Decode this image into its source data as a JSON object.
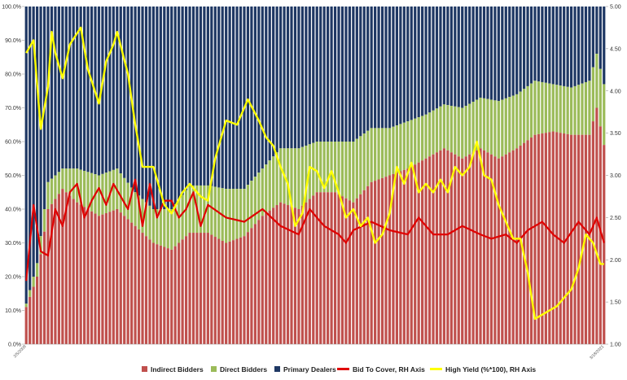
{
  "chart_data": {
    "type": "bar",
    "stacked": true,
    "grid": false,
    "legend_position": "bottom",
    "left_axis": {
      "ticks": [
        "0.0%",
        "10.0%",
        "20.0%",
        "30.0%",
        "40.0%",
        "50.0%",
        "60.0%",
        "70.0%",
        "80.0%",
        "90.0%",
        "100.0%"
      ],
      "range": [
        0,
        100
      ]
    },
    "right_axis": {
      "ticks": [
        "1.00",
        "1.50",
        "2.00",
        "2.50",
        "3.00",
        "3.50",
        "4.00",
        "4.50",
        "5.00"
      ],
      "range": [
        1,
        5
      ]
    },
    "x_first": "2/5/2008",
    "x_last": "3/18/2021",
    "count": 160,
    "colors": {
      "indirect": "#c0504d",
      "direct": "#9bbb59",
      "primary": "#1f3864",
      "btc": "#e00000",
      "yield": "#ffff00"
    },
    "series": [
      {
        "name": "Indirect Bidders",
        "axis": "left",
        "type": "bar",
        "anchors": [
          [
            0,
            11
          ],
          [
            3,
            20
          ],
          [
            6,
            40
          ],
          [
            10,
            46
          ],
          [
            14,
            42
          ],
          [
            20,
            38
          ],
          [
            25,
            40
          ],
          [
            30,
            35
          ],
          [
            35,
            30
          ],
          [
            40,
            28
          ],
          [
            45,
            33
          ],
          [
            50,
            33
          ],
          [
            55,
            30
          ],
          [
            60,
            32
          ],
          [
            65,
            38
          ],
          [
            70,
            42
          ],
          [
            75,
            40
          ],
          [
            80,
            45
          ],
          [
            85,
            45
          ],
          [
            90,
            42
          ],
          [
            95,
            48
          ],
          [
            100,
            50
          ],
          [
            105,
            52
          ],
          [
            110,
            55
          ],
          [
            115,
            58
          ],
          [
            120,
            55
          ],
          [
            125,
            58
          ],
          [
            130,
            55
          ],
          [
            135,
            58
          ],
          [
            140,
            62
          ],
          [
            145,
            63
          ],
          [
            150,
            62
          ],
          [
            155,
            62
          ],
          [
            157,
            70
          ],
          [
            159,
            59
          ]
        ]
      },
      {
        "name": "Direct Bidders",
        "axis": "left",
        "type": "bar",
        "anchors": [
          [
            0,
            1
          ],
          [
            3,
            4
          ],
          [
            6,
            8
          ],
          [
            10,
            6
          ],
          [
            14,
            10
          ],
          [
            20,
            12
          ],
          [
            25,
            12
          ],
          [
            30,
            10
          ],
          [
            35,
            10
          ],
          [
            40,
            12
          ],
          [
            45,
            14
          ],
          [
            50,
            14
          ],
          [
            55,
            16
          ],
          [
            60,
            14
          ],
          [
            65,
            14
          ],
          [
            70,
            16
          ],
          [
            75,
            18
          ],
          [
            80,
            15
          ],
          [
            85,
            15
          ],
          [
            90,
            18
          ],
          [
            95,
            16
          ],
          [
            100,
            14
          ],
          [
            105,
            14
          ],
          [
            110,
            13
          ],
          [
            115,
            13
          ],
          [
            120,
            15
          ],
          [
            125,
            15
          ],
          [
            130,
            17
          ],
          [
            135,
            16
          ],
          [
            140,
            16
          ],
          [
            145,
            14
          ],
          [
            150,
            14
          ],
          [
            155,
            16
          ],
          [
            157,
            16
          ],
          [
            159,
            18
          ]
        ]
      },
      {
        "name": "Primary Dealers",
        "axis": "left",
        "type": "bar",
        "values": "remainder"
      },
      {
        "name": "Bid To Cover, RH Axis",
        "axis": "right",
        "type": "line",
        "anchors": [
          [
            0,
            1.75
          ],
          [
            2,
            2.65
          ],
          [
            4,
            2.1
          ],
          [
            6,
            2.05
          ],
          [
            8,
            2.6
          ],
          [
            10,
            2.4
          ],
          [
            12,
            2.8
          ],
          [
            14,
            2.9
          ],
          [
            16,
            2.5
          ],
          [
            18,
            2.7
          ],
          [
            20,
            2.85
          ],
          [
            22,
            2.65
          ],
          [
            24,
            2.9
          ],
          [
            26,
            2.75
          ],
          [
            28,
            2.6
          ],
          [
            30,
            2.95
          ],
          [
            32,
            2.4
          ],
          [
            34,
            2.9
          ],
          [
            36,
            2.5
          ],
          [
            38,
            2.7
          ],
          [
            40,
            2.7
          ],
          [
            42,
            2.5
          ],
          [
            44,
            2.6
          ],
          [
            46,
            2.8
          ],
          [
            48,
            2.4
          ],
          [
            50,
            2.65
          ],
          [
            55,
            2.5
          ],
          [
            60,
            2.45
          ],
          [
            65,
            2.6
          ],
          [
            70,
            2.4
          ],
          [
            75,
            2.3
          ],
          [
            78,
            2.6
          ],
          [
            82,
            2.4
          ],
          [
            86,
            2.3
          ],
          [
            88,
            2.2
          ],
          [
            90,
            2.35
          ],
          [
            95,
            2.45
          ],
          [
            100,
            2.35
          ],
          [
            105,
            2.3
          ],
          [
            108,
            2.5
          ],
          [
            112,
            2.3
          ],
          [
            116,
            2.3
          ],
          [
            120,
            2.4
          ],
          [
            125,
            2.3
          ],
          [
            128,
            2.25
          ],
          [
            132,
            2.3
          ],
          [
            135,
            2.2
          ],
          [
            138,
            2.35
          ],
          [
            142,
            2.45
          ],
          [
            145,
            2.3
          ],
          [
            148,
            2.2
          ],
          [
            152,
            2.45
          ],
          [
            155,
            2.3
          ],
          [
            157,
            2.5
          ],
          [
            159,
            2.2
          ]
        ]
      },
      {
        "name": "High Yield (%*100), RH Axis",
        "axis": "right",
        "type": "line",
        "anchors": [
          [
            0,
            4.45
          ],
          [
            2,
            4.6
          ],
          [
            4,
            3.55
          ],
          [
            6,
            4.05
          ],
          [
            7,
            4.7
          ],
          [
            8,
            4.45
          ],
          [
            10,
            4.15
          ],
          [
            12,
            4.55
          ],
          [
            15,
            4.75
          ],
          [
            17,
            4.25
          ],
          [
            20,
            3.85
          ],
          [
            22,
            4.35
          ],
          [
            24,
            4.55
          ],
          [
            25,
            4.7
          ],
          [
            28,
            4.2
          ],
          [
            30,
            3.6
          ],
          [
            32,
            3.1
          ],
          [
            35,
            3.1
          ],
          [
            38,
            2.65
          ],
          [
            40,
            2.55
          ],
          [
            43,
            2.8
          ],
          [
            45,
            2.9
          ],
          [
            48,
            2.75
          ],
          [
            50,
            2.7
          ],
          [
            52,
            3.2
          ],
          [
            55,
            3.65
          ],
          [
            58,
            3.6
          ],
          [
            61,
            3.9
          ],
          [
            64,
            3.65
          ],
          [
            66,
            3.45
          ],
          [
            68,
            3.35
          ],
          [
            70,
            3.1
          ],
          [
            72,
            2.9
          ],
          [
            74,
            2.4
          ],
          [
            76,
            2.55
          ],
          [
            78,
            3.1
          ],
          [
            80,
            3.05
          ],
          [
            82,
            2.85
          ],
          [
            84,
            3.05
          ],
          [
            86,
            2.8
          ],
          [
            88,
            2.5
          ],
          [
            90,
            2.6
          ],
          [
            92,
            2.4
          ],
          [
            94,
            2.5
          ],
          [
            96,
            2.2
          ],
          [
            98,
            2.3
          ],
          [
            100,
            2.55
          ],
          [
            102,
            3.1
          ],
          [
            104,
            2.9
          ],
          [
            106,
            3.15
          ],
          [
            108,
            2.8
          ],
          [
            110,
            2.9
          ],
          [
            112,
            2.8
          ],
          [
            114,
            2.95
          ],
          [
            116,
            2.8
          ],
          [
            118,
            3.1
          ],
          [
            120,
            3.0
          ],
          [
            122,
            3.1
          ],
          [
            124,
            3.4
          ],
          [
            126,
            3.0
          ],
          [
            128,
            2.95
          ],
          [
            130,
            2.65
          ],
          [
            132,
            2.45
          ],
          [
            134,
            2.25
          ],
          [
            136,
            2.25
          ],
          [
            138,
            1.85
          ],
          [
            140,
            1.3
          ],
          [
            142,
            1.35
          ],
          [
            144,
            1.4
          ],
          [
            146,
            1.45
          ],
          [
            148,
            1.55
          ],
          [
            150,
            1.65
          ],
          [
            152,
            1.9
          ],
          [
            154,
            2.3
          ],
          [
            156,
            2.2
          ],
          [
            158,
            1.95
          ],
          [
            159,
            1.95
          ]
        ]
      }
    ]
  }
}
